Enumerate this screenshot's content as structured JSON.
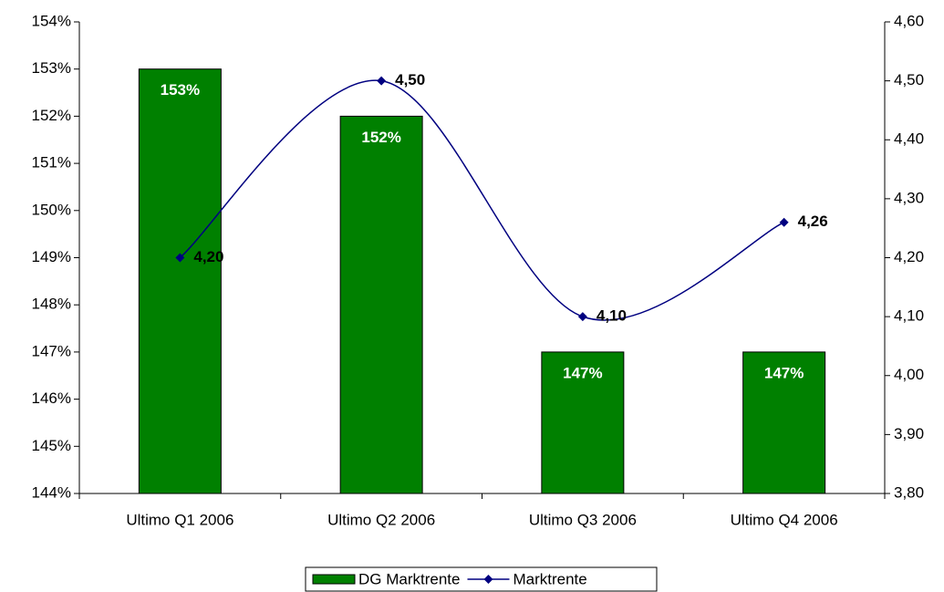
{
  "chart_data": {
    "type": "combo",
    "categories": [
      "Ultimo Q1 2006",
      "Ultimo Q2 2006",
      "Ultimo Q3 2006",
      "Ultimo Q4 2006"
    ],
    "series": [
      {
        "name": "DG Marktrente",
        "type": "bar",
        "color": "#008000",
        "values": [
          153,
          152,
          147,
          147
        ],
        "value_labels": [
          "153%",
          "152%",
          "147%",
          "147%"
        ]
      },
      {
        "name": "Marktrente",
        "type": "line",
        "axis": "y2",
        "color": "#000080",
        "values": [
          4.2,
          4.5,
          4.1,
          4.26
        ],
        "value_labels": [
          "4,20",
          "4,50",
          "4,10",
          "4,26"
        ]
      }
    ],
    "ylim": [
      144,
      154
    ],
    "yticks": [
      {
        "value": 144,
        "label": "144%"
      },
      {
        "value": 145,
        "label": "145%"
      },
      {
        "value": 146,
        "label": "146%"
      },
      {
        "value": 147,
        "label": "147%"
      },
      {
        "value": 148,
        "label": "148%"
      },
      {
        "value": 149,
        "label": "149%"
      },
      {
        "value": 150,
        "label": "150%"
      },
      {
        "value": 151,
        "label": "151%"
      },
      {
        "value": 152,
        "label": "152%"
      },
      {
        "value": 153,
        "label": "153%"
      },
      {
        "value": 154,
        "label": "154%"
      }
    ],
    "y2lim": [
      3.8,
      4.6
    ],
    "y2ticks": [
      {
        "value": 3.8,
        "label": "3,80"
      },
      {
        "value": 3.9,
        "label": "3,90"
      },
      {
        "value": 4.0,
        "label": "4,00"
      },
      {
        "value": 4.1,
        "label": "4,10"
      },
      {
        "value": 4.2,
        "label": "4,20"
      },
      {
        "value": 4.3,
        "label": "4,30"
      },
      {
        "value": 4.4,
        "label": "4,40"
      },
      {
        "value": 4.5,
        "label": "4,50"
      },
      {
        "value": 4.6,
        "label": "4,60"
      }
    ],
    "grid": false,
    "legend": "bottom"
  }
}
